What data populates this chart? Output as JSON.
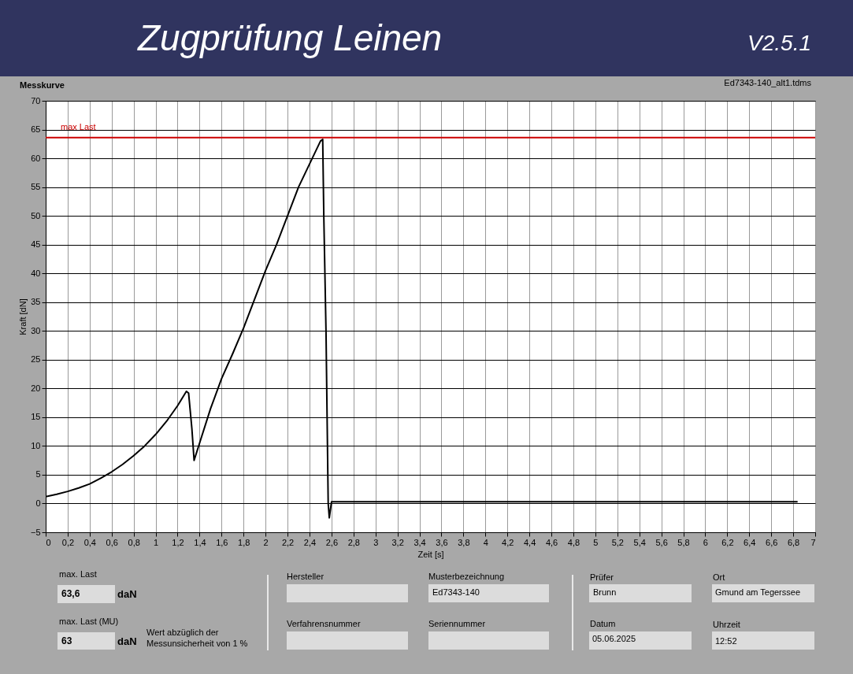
{
  "chart_data": {
    "type": "line",
    "title": "Zugprüfung Leinen",
    "subtitle": "V2.5.1",
    "xlabel": "Zeit [s]",
    "ylabel": "Kraft [dN]",
    "annotations": [
      "Messkurve",
      "Ed7343-140_alt1.tdms",
      "max. Last",
      "63,6",
      "daN",
      "max. Last (MU)",
      "63",
      "daN",
      "Wert abzüglich der Messunsicherheit von 1 %",
      "Hersteller",
      "Musterbezeichnung",
      "Ed7343-140",
      "Verfahrensnummer",
      "Seriennummer",
      "Prüfer",
      "Brunn",
      "Ort",
      "Gmund am Tegerssee",
      "Datum",
      "05.06.2025",
      "Uhrzeit",
      "12:52"
    ],
    "x": [
      0,
      0.1,
      0.2,
      0.3,
      0.4,
      0.5,
      0.6,
      0.7,
      0.8,
      0.9,
      1.0,
      1.1,
      1.2,
      1.28,
      1.3,
      1.33,
      1.35,
      1.4,
      1.5,
      1.6,
      1.7,
      1.8,
      1.9,
      2.0,
      2.1,
      2.2,
      2.3,
      2.4,
      2.5,
      2.52,
      2.53,
      2.55,
      2.56,
      2.57,
      2.58,
      2.6,
      3.0,
      4.0,
      5.0,
      6.0,
      6.84
    ],
    "series": [
      {
        "color": "#000000",
        "values": [
          1.2,
          1.6,
          2.1,
          2.7,
          3.4,
          4.4,
          5.5,
          6.8,
          8.3,
          10,
          12,
          14.3,
          17,
          19.5,
          19.2,
          13,
          7.5,
          10.5,
          16.5,
          21.7,
          26,
          30.5,
          35.5,
          40.5,
          45,
          50,
          55,
          59,
          63,
          63.3,
          50,
          30,
          15,
          0,
          -2.5,
          0.3,
          0.3,
          0.3,
          0.3,
          0.3,
          0.3
        ]
      }
    ],
    "ref_lines": [
      {
        "axis": "y",
        "value": 63.6,
        "label": "max Last",
        "color": "#cc0000"
      }
    ],
    "xlim": [
      0,
      7
    ],
    "ylim": [
      -5,
      70
    ],
    "xticks": [
      0,
      {
        "value": 0.2,
        "label": "0,2"
      },
      {
        "value": 0.4,
        "label": "0,4"
      },
      {
        "value": 0.6,
        "label": "0,6"
      },
      {
        "value": 0.8,
        "label": "0,8"
      },
      1,
      {
        "value": 1.2,
        "label": "1,2"
      },
      {
        "value": 1.4,
        "label": "1,4"
      },
      {
        "value": 1.6,
        "label": "1,6"
      },
      {
        "value": 1.8,
        "label": "1,8"
      },
      2,
      {
        "value": 2.2,
        "label": "2,2"
      },
      {
        "value": 2.4,
        "label": "2,4"
      },
      {
        "value": 2.6,
        "label": "2,6"
      },
      {
        "value": 2.8,
        "label": "2,8"
      },
      3,
      {
        "value": 3.2,
        "label": "3,2"
      },
      {
        "value": 3.4,
        "label": "3,4"
      },
      {
        "value": 3.6,
        "label": "3,6"
      },
      {
        "value": 3.8,
        "label": "3,8"
      },
      4,
      {
        "value": 4.2,
        "label": "4,2"
      },
      {
        "value": 4.4,
        "label": "4,4"
      },
      {
        "value": 4.6,
        "label": "4,6"
      },
      {
        "value": 4.8,
        "label": "4,8"
      },
      5,
      {
        "value": 5.2,
        "label": "5,2"
      },
      {
        "value": 5.4,
        "label": "5,4"
      },
      {
        "value": 5.6,
        "label": "5,6"
      },
      {
        "value": 5.8,
        "label": "5,8"
      },
      6,
      {
        "value": 6.2,
        "label": "6,2"
      },
      {
        "value": 6.4,
        "label": "6,4"
      },
      {
        "value": 6.6,
        "label": "6,6"
      },
      {
        "value": 6.8,
        "label": "6,8"
      },
      7
    ],
    "yticks": [
      -5,
      0,
      5,
      10,
      15,
      20,
      25,
      30,
      35,
      40,
      45,
      50,
      55,
      60,
      65,
      70
    ],
    "grid": true,
    "marker": "none",
    "line_style": "solid"
  }
}
